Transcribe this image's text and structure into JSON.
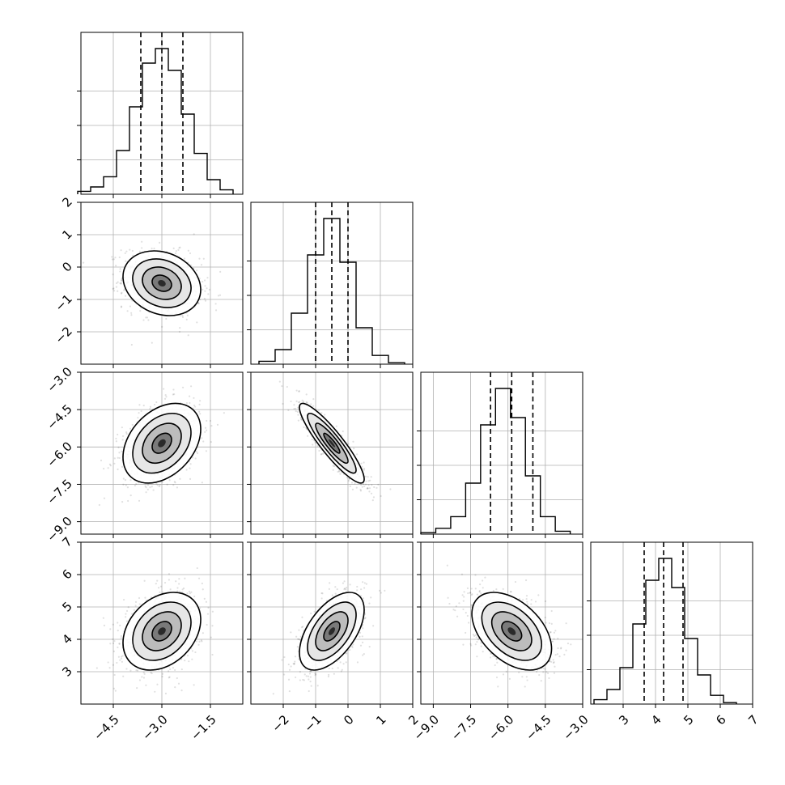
{
  "chart_data": {
    "type": "corner",
    "title": "",
    "n_params": 4,
    "params": [
      {
        "name": "",
        "range": [
          -5.5,
          -0.5
        ],
        "ticks": [
          -4.5,
          -3.0,
          -1.5
        ],
        "tick_labels": [
          "−4.5",
          "−3.0",
          "−1.5"
        ],
        "quantiles": [
          -3.65,
          -3.0,
          -2.35
        ],
        "hist_x": [
          -5.4,
          -5.0,
          -4.6,
          -4.2,
          -3.8,
          -3.4,
          -3.0,
          -2.6,
          -2.2,
          -1.8,
          -1.4,
          -1.0
        ],
        "hist_y": [
          0.02,
          0.05,
          0.12,
          0.3,
          0.6,
          0.9,
          1.0,
          0.85,
          0.55,
          0.28,
          0.1,
          0.03
        ]
      },
      {
        "name": "",
        "range": [
          -3.0,
          2.0
        ],
        "ticks": [
          -2,
          -1,
          0,
          1,
          2
        ],
        "tick_labels": [
          "−2",
          "−1",
          "0",
          "1",
          "2"
        ],
        "quantiles": [
          -1.0,
          -0.5,
          0.0
        ],
        "hist_x": [
          -2.5,
          -2.0,
          -1.5,
          -1.0,
          -0.5,
          0.0,
          0.5,
          1.0,
          1.5
        ],
        "hist_y": [
          0.02,
          0.1,
          0.35,
          0.75,
          1.0,
          0.7,
          0.25,
          0.06,
          0.01
        ]
      },
      {
        "name": "",
        "range": [
          -9.5,
          -3.0
        ],
        "ticks": [
          -9.0,
          -7.5,
          -6.0,
          -4.5,
          -3.0
        ],
        "tick_labels": [
          "−9.0",
          "−7.5",
          "−6.0",
          "−4.5",
          "−3.0"
        ],
        "quantiles": [
          -6.7,
          -5.85,
          -5.0
        ],
        "hist_x": [
          -9.2,
          -8.6,
          -8.0,
          -7.4,
          -6.8,
          -6.2,
          -5.6,
          -5.0,
          -4.4,
          -3.8
        ],
        "hist_y": [
          0.01,
          0.04,
          0.12,
          0.35,
          0.75,
          1.0,
          0.8,
          0.4,
          0.12,
          0.02
        ]
      },
      {
        "name": "",
        "range": [
          2.0,
          7.0
        ],
        "ticks": [
          3,
          4,
          5,
          6,
          7
        ],
        "tick_labels": [
          "3",
          "4",
          "5",
          "6",
          "7"
        ],
        "quantiles": [
          3.65,
          4.25,
          4.85
        ],
        "hist_x": [
          2.3,
          2.7,
          3.1,
          3.5,
          3.9,
          4.3,
          4.7,
          5.1,
          5.5,
          5.9,
          6.3
        ],
        "hist_y": [
          0.03,
          0.1,
          0.25,
          0.55,
          0.85,
          1.0,
          0.8,
          0.45,
          0.2,
          0.06,
          0.01
        ]
      }
    ],
    "y_param_ticks": [
      {
        "ticks": [
          2,
          1,
          0,
          -1,
          -2
        ],
        "tick_labels": [
          "2",
          "1",
          "0",
          "−1",
          "−2"
        ],
        "range": [
          -2.6,
          2.0
        ]
      },
      {
        "ticks": [
          -3.0,
          -4.5,
          -6.0,
          -7.5,
          -9.0
        ],
        "tick_labels": [
          "−3.0",
          "−4.5",
          "−6.0",
          "−7.5",
          "−9.0"
        ],
        "range": [
          -9.0,
          -3.0
        ]
      },
      {
        "ticks": [
          7,
          6,
          5,
          4,
          3
        ],
        "tick_labels": [
          "7",
          "6",
          "5",
          "4",
          "3"
        ],
        "range": [
          2.3,
          7.0
        ]
      }
    ],
    "means": [
      -3.0,
      -0.5,
      -5.85,
      4.25
    ],
    "sds": [
      0.6,
      0.5,
      0.8,
      0.6
    ],
    "correlations": {
      "1_0": -0.2,
      "2_0": 0.35,
      "2_1": -0.9,
      "3_0": 0.3,
      "3_1": 0.55,
      "3_2": -0.45
    },
    "grid": true,
    "colors": {
      "line": "#000000",
      "grid": "#b0b0b0",
      "point": "#000000"
    }
  }
}
